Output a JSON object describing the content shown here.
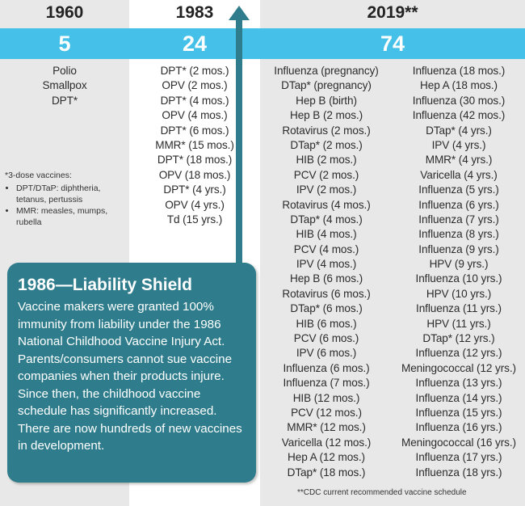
{
  "chart_data": {
    "type": "table",
    "columns": [
      {
        "year": "1960",
        "count": "5",
        "vaccines": [
          "Polio",
          "Smallpox",
          "DPT*"
        ]
      },
      {
        "year": "1983",
        "count": "24",
        "vaccines": [
          "DPT* (2 mos.)",
          "OPV (2 mos.)",
          "DPT* (4 mos.)",
          "OPV (4 mos.)",
          "DPT* (6 mos.)",
          "MMR* (15 mos.)",
          "DPT* (18 mos.)",
          "OPV (18 mos.)",
          "DPT* (4 yrs.)",
          "OPV (4 yrs.)",
          "Td (15 yrs.)"
        ]
      },
      {
        "year": "2019**",
        "count": "74",
        "vaccines_left": [
          "Influenza (pregnancy)",
          "DTap* (pregnancy)",
          "Hep B (birth)",
          "Hep B (2 mos.)",
          "Rotavirus (2 mos.)",
          "DTap* (2 mos.)",
          "HIB (2 mos.)",
          "PCV (2 mos.)",
          "IPV (2 mos.)",
          "Rotavirus (4 mos.)",
          "DTap* (4 mos.)",
          "HIB (4 mos.)",
          "PCV (4 mos.)",
          "IPV (4 mos.)",
          "Hep B (6 mos.)",
          "Rotavirus (6 mos.)",
          "DTap* (6 mos.)",
          "HIB (6 mos.)",
          "PCV (6 mos.)",
          "IPV (6 mos.)",
          "Influenza (6 mos.)",
          "Influenza (7 mos.)",
          "HIB (12 mos.)",
          "PCV (12 mos.)",
          "MMR* (12 mos.)",
          "Varicella (12 mos.)",
          "Hep A (12 mos.)",
          "DTap* (18 mos.)"
        ],
        "vaccines_right": [
          "Influenza (18 mos.)",
          "Hep A (18 mos.)",
          "Influenza (30 mos.)",
          "Influenza (42 mos.)",
          "DTap* (4 yrs.)",
          "IPV (4 yrs.)",
          "MMR* (4 yrs.)",
          "Varicella (4 yrs.)",
          "Influenza (5 yrs.)",
          "Influenza (6 yrs.)",
          "Influenza (7 yrs.)",
          "Influenza (8 yrs.)",
          "Influenza (9 yrs.)",
          "HPV (9 yrs.)",
          "Influenza (10 yrs.)",
          "HPV (10 yrs.)",
          "Influenza (11 yrs.)",
          "HPV (11 yrs.)",
          "DTap* (12 yrs.)",
          "Influenza (12 yrs.)",
          "Meningococcal (12 yrs.)",
          "Influenza (13 yrs.)",
          "Influenza (14 yrs.)",
          "Influenza (15 yrs.)",
          "Influenza (16 yrs.)",
          "Meningococcal (16 yrs.)",
          "Influenza (17 yrs.)",
          "Influenza (18 yrs.)"
        ]
      }
    ],
    "footnote": {
      "title": "*3-dose vaccines:",
      "items": [
        "DPT/DTaP: diphtheria, tetanus, pertussis",
        "MMR: measles, mumps, rubella"
      ]
    },
    "callout": {
      "title": "1986—Liability Shield",
      "body": "Vaccine makers were granted 100% immunity from liability under the 1986 National Childhood Vaccine Injury Act. Parents/consumers cannot sue vaccine companies when their products injure. Since then, the childhood vaccine schedule has significantly increased. There are now hundreds of new vaccines in development."
    },
    "source_note": "**CDC current recommended vaccine schedule"
  },
  "colors": {
    "band": "#45c0e8",
    "callout": "#2f7d8c",
    "column_shade": "#e8e8e8"
  }
}
